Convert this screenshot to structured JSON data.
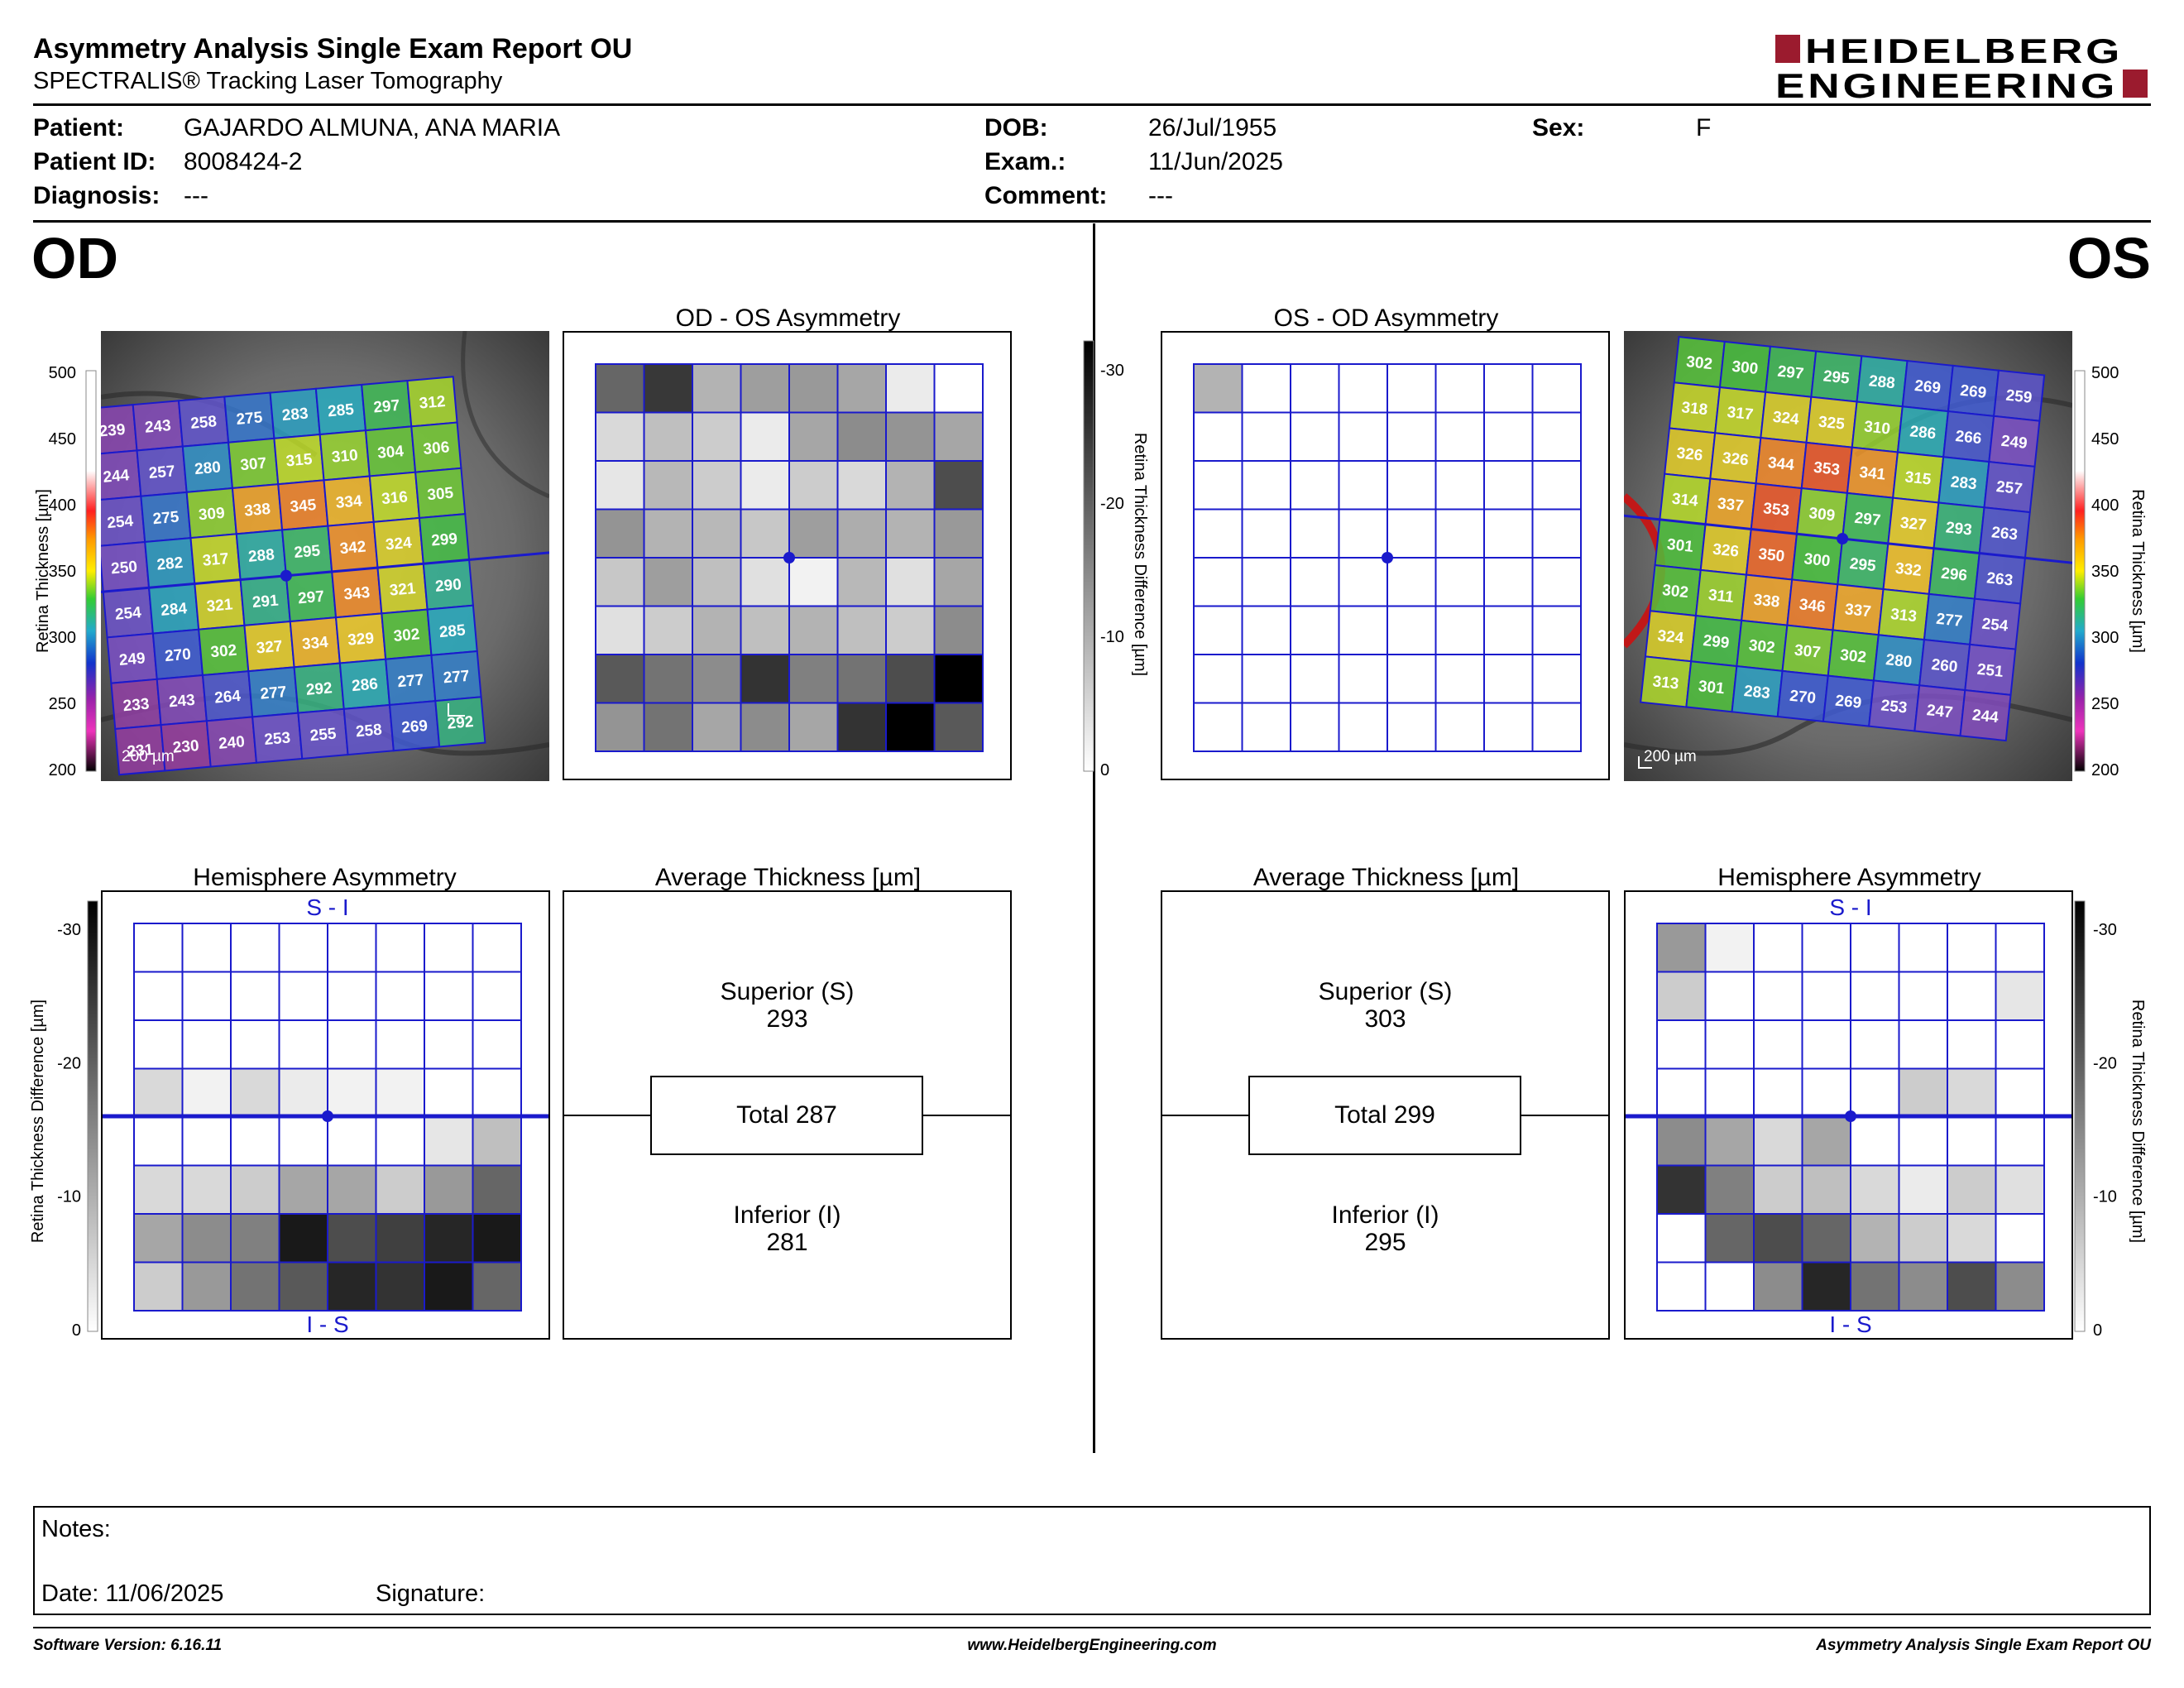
{
  "header": {
    "title": "Asymmetry Analysis Single Exam Report OU",
    "subtitle": "SPECTRALIS® Tracking Laser Tomography",
    "logo_line1": "HEIDELBERG",
    "logo_line2": "ENGINEERING"
  },
  "patient": {
    "patient_label": "Patient:",
    "patient_value": "GAJARDO ALMUNA, ANA MARIA",
    "id_label": "Patient ID:",
    "id_value": "8008424-2",
    "diagnosis_label": "Diagnosis:",
    "diagnosis_value": "---",
    "dob_label": "DOB:",
    "dob_value": "26/Jul/1955",
    "exam_label": "Exam.:",
    "exam_value": "11/Jun/2025",
    "comment_label": "Comment:",
    "comment_value": "---",
    "sex_label": "Sex:",
    "sex_value": "F"
  },
  "od": {
    "eye_label": "OD",
    "asym_title": "OD - OS Asymmetry",
    "hemi_title": "Hemisphere Asymmetry",
    "avg_title": "Average Thickness [µm]",
    "superior_label": "Superior (S)",
    "superior_value": "293",
    "total_label": "Total 287",
    "inferior_label": "Inferior (I)",
    "inferior_value": "281",
    "hemi_top": "S - I",
    "hemi_bottom": "I - S",
    "scale_label": "200 µm",
    "grid": [
      [
        239,
        243,
        258,
        275,
        283,
        285,
        297,
        312
      ],
      [
        244,
        257,
        280,
        307,
        315,
        310,
        304,
        306
      ],
      [
        254,
        275,
        309,
        338,
        345,
        334,
        316,
        305
      ],
      [
        250,
        282,
        317,
        288,
        295,
        342,
        324,
        299
      ],
      [
        254,
        284,
        321,
        291,
        297,
        343,
        321,
        290
      ],
      [
        249,
        270,
        302,
        327,
        334,
        329,
        302,
        285
      ],
      [
        233,
        243,
        264,
        277,
        292,
        286,
        277,
        277
      ],
      [
        231,
        230,
        240,
        253,
        255,
        258,
        269,
        292
      ]
    ],
    "asym_gray": [
      [
        0.6,
        0.78,
        0.3,
        0.38,
        0.4,
        0.35,
        0.08,
        0
      ],
      [
        0.15,
        0.25,
        0.2,
        0.08,
        0.35,
        0.45,
        0.42,
        0.35
      ],
      [
        0.1,
        0.28,
        0.2,
        0.08,
        0.2,
        0.15,
        0.3,
        0.7
      ],
      [
        0.42,
        0.3,
        0.28,
        0.22,
        0.38,
        0.32,
        0.3,
        0.4
      ],
      [
        0.22,
        0.38,
        0.25,
        0.12,
        0.05,
        0.28,
        0.12,
        0.35
      ],
      [
        0.12,
        0.2,
        0.3,
        0.25,
        0.3,
        0.25,
        0.2,
        0.45
      ],
      [
        0.65,
        0.55,
        0.45,
        0.8,
        0.5,
        0.55,
        0.7,
        1.0
      ],
      [
        0.42,
        0.55,
        0.35,
        0.45,
        0.35,
        0.8,
        1.0,
        0.65
      ]
    ],
    "hemi_gray": [
      [
        0,
        0,
        0,
        0,
        0,
        0,
        0,
        0
      ],
      [
        0,
        0,
        0,
        0,
        0,
        0,
        0,
        0
      ],
      [
        0,
        0,
        0,
        0,
        0,
        0,
        0,
        0
      ],
      [
        0.15,
        0.05,
        0.15,
        0.08,
        0.05,
        0.05,
        0,
        0
      ],
      [
        0,
        0,
        0,
        0,
        0,
        0,
        0.1,
        0.25
      ],
      [
        0.15,
        0.15,
        0.2,
        0.35,
        0.35,
        0.2,
        0.4,
        0.6
      ],
      [
        0.35,
        0.45,
        0.5,
        0.9,
        0.7,
        0.75,
        0.85,
        0.9
      ],
      [
        0.2,
        0.4,
        0.55,
        0.65,
        0.85,
        0.8,
        0.9,
        0.6
      ]
    ]
  },
  "os": {
    "eye_label": "OS",
    "asym_title": "OS - OD Asymmetry",
    "hemi_title": "Hemisphere Asymmetry",
    "avg_title": "Average Thickness [µm]",
    "superior_label": "Superior (S)",
    "superior_value": "303",
    "total_label": "Total 299",
    "inferior_label": "Inferior (I)",
    "inferior_value": "295",
    "hemi_top": "S - I",
    "hemi_bottom": "I - S",
    "scale_label": "200 µm",
    "grid": [
      [
        302,
        300,
        297,
        295,
        288,
        269,
        269,
        259
      ],
      [
        318,
        317,
        324,
        325,
        310,
        286,
        266,
        249
      ],
      [
        326,
        326,
        344,
        353,
        341,
        315,
        283,
        257
      ],
      [
        314,
        337,
        353,
        309,
        297,
        327,
        293,
        263
      ],
      [
        301,
        326,
        350,
        300,
        295,
        332,
        296,
        263
      ],
      [
        302,
        311,
        338,
        346,
        337,
        313,
        277,
        254
      ],
      [
        324,
        299,
        302,
        307,
        302,
        280,
        260,
        251
      ],
      [
        313,
        301,
        283,
        270,
        269,
        253,
        247,
        244
      ]
    ],
    "asym_gray": [
      [
        0.3,
        0,
        0,
        0,
        0,
        0,
        0,
        0
      ],
      [
        0,
        0,
        0,
        0,
        0,
        0,
        0,
        0
      ],
      [
        0,
        0,
        0,
        0,
        0,
        0,
        0,
        0
      ],
      [
        0,
        0,
        0,
        0,
        0,
        0,
        0,
        0
      ],
      [
        0,
        0,
        0,
        0,
        0,
        0,
        0,
        0
      ],
      [
        0,
        0,
        0,
        0,
        0,
        0,
        0,
        0
      ],
      [
        0,
        0,
        0,
        0,
        0,
        0,
        0,
        0
      ],
      [
        0,
        0,
        0,
        0,
        0,
        0,
        0,
        0
      ]
    ],
    "hemi_gray": [
      [
        0.4,
        0.05,
        0,
        0,
        0,
        0,
        0,
        0
      ],
      [
        0.2,
        0,
        0,
        0,
        0,
        0,
        0,
        0.1
      ],
      [
        0,
        0,
        0,
        0,
        0,
        0,
        0,
        0
      ],
      [
        0,
        0,
        0,
        0,
        0,
        0.2,
        0.15,
        0
      ],
      [
        0.45,
        0.35,
        0.15,
        0.35,
        0,
        0,
        0,
        0
      ],
      [
        0.8,
        0.5,
        0.2,
        0.25,
        0.15,
        0.08,
        0.2,
        0.12
      ],
      [
        0,
        0.6,
        0.7,
        0.6,
        0.3,
        0.2,
        0.15,
        0
      ],
      [
        0,
        0,
        0.45,
        0.85,
        0.55,
        0.45,
        0.7,
        0.45
      ]
    ]
  },
  "axes": {
    "thickness_label": "Retina Thickness [µm]",
    "thickness_ticks": [
      "500",
      "450",
      "400",
      "350",
      "300",
      "250",
      "200"
    ],
    "difference_label": "Retina Thickness Difference [µm]",
    "difference_ticks": [
      "-30",
      "-20",
      "-10",
      "0"
    ]
  },
  "notes": {
    "notes_label": "Notes:",
    "date_label": "Date: 11/06/2025",
    "signature_label": "Signature:"
  },
  "footer": {
    "software": "Software Version: 6.16.11",
    "website": "www.HeidelbergEngineering.com",
    "report": "Asymmetry Analysis Single Exam Report OU"
  },
  "colors": {
    "grid_blue": "#1a1acc",
    "logo_red": "#9b1b2e"
  }
}
